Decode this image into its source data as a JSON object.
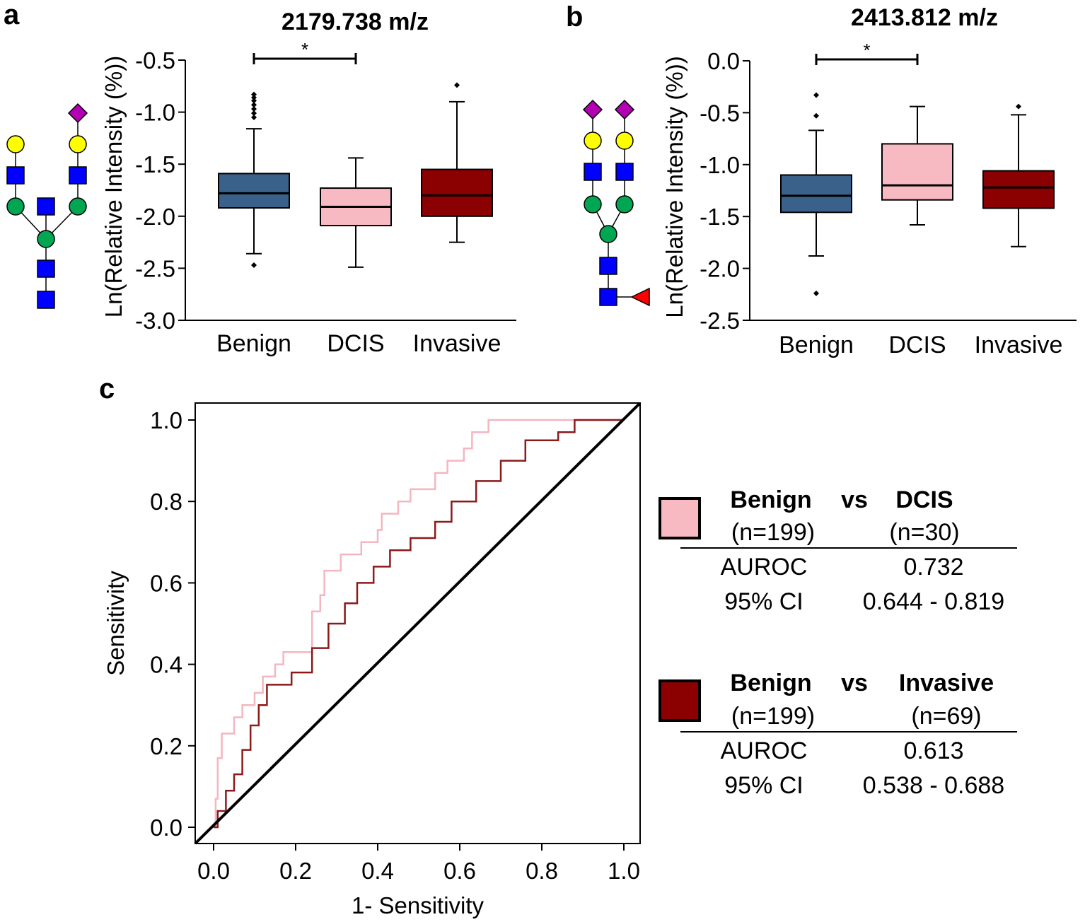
{
  "panels": {
    "a": "a",
    "b": "b",
    "c": "c"
  },
  "colors": {
    "benign": "#3a6189",
    "dcis": "#f7b9c2",
    "invasive": "#8b0000",
    "roc_dcis": "#f4b6bf",
    "roc_invasive": "#8b1a1a",
    "glycan_sialic": "#b200b2",
    "glycan_gal": "#ffff00",
    "glycan_glcnac": "#0000ff",
    "glycan_man": "#00a651",
    "glycan_fuc": "#ff0000"
  },
  "chart_data": [
    {
      "id": "a",
      "type": "box",
      "title": "2179.738 m/z",
      "ylabel": "Ln(Relative Intensity (%))",
      "ylim": [
        -3.0,
        -0.5
      ],
      "yticks": [
        "-0.5",
        "-1.0",
        "-1.5",
        "-2.0",
        "-2.5",
        "-3.0"
      ],
      "categories": [
        "Benign",
        "DCIS",
        "Invasive"
      ],
      "significance": {
        "from": "Benign",
        "to": "DCIS",
        "label": "*"
      },
      "boxes": [
        {
          "name": "Benign",
          "whisker_low": -2.36,
          "q1": -1.92,
          "median": -1.78,
          "q3": -1.59,
          "whisker_high": -1.16,
          "outliers": [
            -0.83,
            -0.86,
            -0.89,
            -0.93,
            -0.97,
            -1.01,
            -1.05,
            -2.47
          ]
        },
        {
          "name": "DCIS",
          "whisker_low": -2.49,
          "q1": -2.09,
          "median": -1.91,
          "q3": -1.73,
          "whisker_high": -1.44,
          "outliers": []
        },
        {
          "name": "Invasive",
          "whisker_low": -2.25,
          "q1": -2.0,
          "median": -1.8,
          "q3": -1.55,
          "whisker_high": -0.9,
          "outliers": [
            -0.74
          ]
        }
      ]
    },
    {
      "id": "b",
      "type": "box",
      "title": "2413.812 m/z",
      "ylabel": "Ln(Relative Intensity (%))",
      "ylim": [
        -2.5,
        0.0
      ],
      "yticks": [
        "0.0",
        "-0.5",
        "-1.0",
        "-1.5",
        "-2.0",
        "-2.5"
      ],
      "categories": [
        "Benign",
        "DCIS",
        "Invasive"
      ],
      "significance": {
        "from": "Benign",
        "to": "DCIS",
        "label": "*"
      },
      "boxes": [
        {
          "name": "Benign",
          "whisker_low": -1.88,
          "q1": -1.46,
          "median": -1.3,
          "q3": -1.1,
          "whisker_high": -0.67,
          "outliers": [
            -0.33,
            -0.53,
            -2.24
          ]
        },
        {
          "name": "DCIS",
          "whisker_low": -1.58,
          "q1": -1.34,
          "median": -1.2,
          "q3": -0.8,
          "whisker_high": -0.44,
          "outliers": []
        },
        {
          "name": "Invasive",
          "whisker_low": -1.79,
          "q1": -1.42,
          "median": -1.22,
          "q3": -1.06,
          "whisker_high": -0.52,
          "outliers": [
            -0.44
          ]
        }
      ]
    },
    {
      "id": "c",
      "type": "line",
      "title": "",
      "xlabel": "1- Sensitivity",
      "ylabel": "Sensitivity",
      "xlim": [
        0,
        1
      ],
      "ylim": [
        0,
        1
      ],
      "xticks": [
        "0.0",
        "0.2",
        "0.4",
        "0.6",
        "0.8",
        "1.0"
      ],
      "yticks": [
        "0.0",
        "0.2",
        "0.4",
        "0.6",
        "0.8",
        "1.0"
      ],
      "series": [
        {
          "name": "Benign vs DCIS",
          "x": [
            0,
            0.005,
            0.005,
            0.01,
            0.01,
            0.02,
            0.02,
            0.05,
            0.05,
            0.07,
            0.07,
            0.1,
            0.1,
            0.12,
            0.12,
            0.15,
            0.15,
            0.17,
            0.17,
            0.24,
            0.24,
            0.26,
            0.26,
            0.27,
            0.27,
            0.31,
            0.31,
            0.36,
            0.36,
            0.4,
            0.4,
            0.41,
            0.41,
            0.45,
            0.45,
            0.48,
            0.48,
            0.54,
            0.54,
            0.57,
            0.57,
            0.61,
            0.61,
            0.63,
            0.63,
            0.64,
            0.64,
            0.67,
            0.67,
            1.0
          ],
          "y": [
            0,
            0,
            0.07,
            0.07,
            0.17,
            0.17,
            0.23,
            0.23,
            0.27,
            0.27,
            0.3,
            0.3,
            0.33,
            0.33,
            0.37,
            0.37,
            0.4,
            0.4,
            0.43,
            0.43,
            0.53,
            0.53,
            0.57,
            0.57,
            0.63,
            0.63,
            0.67,
            0.67,
            0.7,
            0.7,
            0.73,
            0.73,
            0.77,
            0.77,
            0.8,
            0.8,
            0.83,
            0.83,
            0.87,
            0.87,
            0.9,
            0.9,
            0.93,
            0.93,
            0.97,
            0.97,
            0.97,
            0.97,
            1.0,
            1.0
          ]
        },
        {
          "name": "Benign vs Invasive",
          "x": [
            0,
            0.01,
            0.01,
            0.03,
            0.03,
            0.05,
            0.05,
            0.07,
            0.07,
            0.09,
            0.09,
            0.11,
            0.11,
            0.13,
            0.13,
            0.15,
            0.15,
            0.17,
            0.17,
            0.19,
            0.19,
            0.24,
            0.24,
            0.28,
            0.28,
            0.32,
            0.32,
            0.35,
            0.35,
            0.39,
            0.39,
            0.43,
            0.43,
            0.48,
            0.48,
            0.54,
            0.54,
            0.58,
            0.58,
            0.64,
            0.64,
            0.7,
            0.7,
            0.76,
            0.76,
            0.84,
            0.84,
            0.88,
            0.88,
            1.0
          ],
          "y": [
            0,
            0,
            0.04,
            0.04,
            0.09,
            0.09,
            0.13,
            0.13,
            0.19,
            0.19,
            0.25,
            0.25,
            0.3,
            0.3,
            0.35,
            0.35,
            0.35,
            0.35,
            0.35,
            0.35,
            0.38,
            0.38,
            0.44,
            0.44,
            0.5,
            0.5,
            0.55,
            0.55,
            0.6,
            0.6,
            0.64,
            0.64,
            0.68,
            0.68,
            0.71,
            0.71,
            0.75,
            0.75,
            0.8,
            0.8,
            0.85,
            0.85,
            0.9,
            0.9,
            0.95,
            0.95,
            0.97,
            0.97,
            1.0,
            1.0
          ]
        },
        {
          "name": "Reference",
          "x": [
            0,
            1
          ],
          "y": [
            0,
            1
          ]
        }
      ]
    }
  ],
  "legend": [
    {
      "group1": "Benign",
      "vs": "vs",
      "group2": "DCIS",
      "n1": "(n=199)",
      "n2": "(n=30)",
      "auroc_label": "AUROC",
      "auroc_value": "0.732",
      "ci_label": "95% CI",
      "ci_value": "0.644 - 0.819"
    },
    {
      "group1": "Benign",
      "vs": "vs",
      "group2": "Invasive",
      "n1": "(n=199)",
      "n2": "(n=69)",
      "auroc_label": "AUROC",
      "auroc_value": "0.613",
      "ci_label": "95% CI",
      "ci_value": "0.538 - 0.688"
    }
  ]
}
